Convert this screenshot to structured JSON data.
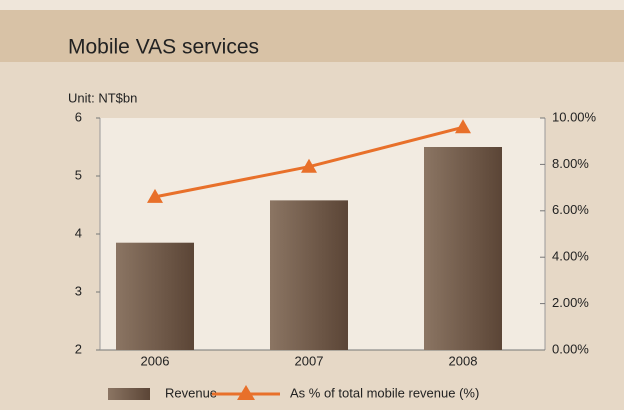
{
  "chart_data": {
    "type": "bar",
    "title": "Mobile VAS services",
    "y_label": "Unit: NT$bn",
    "categories": [
      "2006",
      "2007",
      "2008"
    ],
    "series": [
      {
        "name": "Revenue",
        "color": "#6e5847",
        "type": "bar",
        "values": [
          3.85,
          4.58,
          5.5
        ]
      },
      {
        "name": "As % of total mobile revenue (%)",
        "color": "#e8702a",
        "type": "line",
        "axis": "y2",
        "values": [
          6.6,
          7.9,
          9.6
        ]
      }
    ],
    "ylim": [
      2,
      6
    ],
    "yticks": [
      2,
      3,
      4,
      5,
      6
    ],
    "y2lim": [
      0,
      10
    ],
    "y2ticks": [
      {
        "value": 0,
        "label": "0.00%"
      },
      {
        "value": 2,
        "label": "2.00%"
      },
      {
        "value": 4,
        "label": "4.00%"
      },
      {
        "value": 6,
        "label": "6.00%"
      },
      {
        "value": 8,
        "label": "8.00%"
      },
      {
        "value": 10,
        "label": "10.00%"
      }
    ],
    "legend": "bottom"
  }
}
